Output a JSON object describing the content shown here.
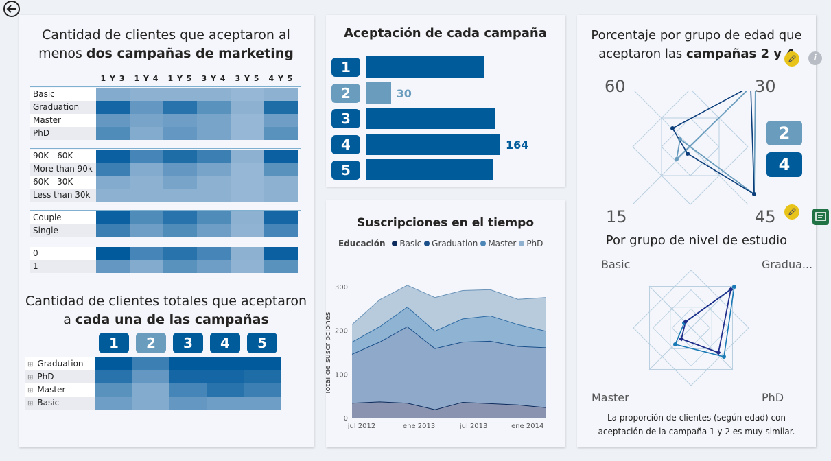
{
  "back_icon": "circle-arrow-left-icon",
  "card1": {
    "title_line1": "Cantidad de clientes que aceptaron al",
    "title_pre": "menos ",
    "title_bold": "dos campañas de marketing",
    "columns": [
      "1 Y 3",
      "1 Y 4",
      "1 Y 5",
      "3 Y 4",
      "3 Y 5",
      "4 Y 5"
    ],
    "groups": [
      {
        "rows": [
          {
            "label": "Basic",
            "shades": [
              0.35,
              0.3,
              0.3,
              0.3,
              0.25,
              0.3
            ]
          },
          {
            "label": "Graduation",
            "shades": [
              0.9,
              0.5,
              0.8,
              0.55,
              0.3,
              0.85
            ]
          },
          {
            "label": "Master",
            "shades": [
              0.5,
              0.4,
              0.45,
              0.4,
              0.25,
              0.45
            ]
          },
          {
            "label": "PhD",
            "shades": [
              0.6,
              0.35,
              0.5,
              0.4,
              0.25,
              0.55
            ]
          }
        ]
      },
      {
        "rows": [
          {
            "label": "90K - 60K",
            "shades": [
              0.95,
              0.65,
              0.85,
              0.7,
              0.3,
              0.95
            ]
          },
          {
            "label": "More than 90k",
            "shades": [
              0.7,
              0.35,
              0.5,
              0.4,
              0.25,
              0.55
            ]
          },
          {
            "label": "60K - 30K",
            "shades": [
              0.35,
              0.3,
              0.4,
              0.3,
              0.25,
              0.3
            ]
          },
          {
            "label": "Less than 30k",
            "shades": [
              0.3,
              0.3,
              0.3,
              0.3,
              0.25,
              0.3
            ]
          }
        ]
      },
      {
        "rows": [
          {
            "label": "Couple",
            "shades": [
              0.95,
              0.6,
              0.8,
              0.6,
              0.3,
              0.9
            ]
          },
          {
            "label": "Single",
            "shades": [
              0.7,
              0.45,
              0.6,
              0.45,
              0.28,
              0.65
            ]
          }
        ]
      },
      {
        "rows": [
          {
            "label": "0",
            "shades": [
              1.0,
              0.65,
              0.8,
              0.65,
              0.3,
              0.95
            ]
          },
          {
            "label": "1",
            "shades": [
              0.5,
              0.35,
              0.55,
              0.45,
              0.28,
              0.55
            ]
          }
        ]
      }
    ]
  },
  "card2": {
    "title_line1": "Cantidad de clientes totales que aceptaron",
    "title_pre": "a ",
    "title_bold": "cada una de las campañas",
    "campaigns": [
      "1",
      "2",
      "3",
      "4",
      "5"
    ],
    "rows": [
      {
        "label": "Graduation",
        "shades": [
          1.0,
          0.7,
          1.0,
          1.0,
          1.0
        ]
      },
      {
        "label": "PhD",
        "shades": [
          0.8,
          0.5,
          0.9,
          0.9,
          0.85
        ]
      },
      {
        "label": "Master",
        "shades": [
          0.55,
          0.35,
          0.65,
          0.8,
          0.7
        ]
      },
      {
        "label": "Basic",
        "shades": [
          0.45,
          0.35,
          0.5,
          0.45,
          0.45
        ]
      }
    ]
  },
  "card3": {
    "title": "Aceptación de cada campaña",
    "bars": [
      {
        "label": "1",
        "value": 144
      },
      {
        "label": "2",
        "value": 30,
        "value_label": "30"
      },
      {
        "label": "3",
        "value": 157
      },
      {
        "label": "4",
        "value": 164,
        "value_label": "164"
      },
      {
        "label": "5",
        "value": 155
      }
    ]
  },
  "card4": {
    "title": "Suscripciones en el tiempo",
    "legend_title": "Educación",
    "legend": [
      {
        "name": "Basic",
        "color": "#0d2b5c"
      },
      {
        "name": "Graduation",
        "color": "#1a4f8a"
      },
      {
        "name": "Master",
        "color": "#4d87b8"
      },
      {
        "name": "PhD",
        "color": "#8fb1cf"
      }
    ],
    "ylabel": "Total de suscripciones",
    "xticks": [
      "jul 2012",
      "ene 2013",
      "jul 2013",
      "ene 2014"
    ],
    "yticks": [
      "0",
      "100",
      "200",
      "300"
    ]
  },
  "chart_data": {
    "type": "area",
    "title": "Suscripciones en el tiempo",
    "ylabel": "Total de suscripciones",
    "xlabel": "",
    "ylim": [
      0,
      330
    ],
    "x": [
      "2012-07",
      "2012-10",
      "2013-01",
      "2013-04",
      "2013-07",
      "2013-10",
      "2014-01",
      "2014-04"
    ],
    "series": [
      {
        "name": "Basic",
        "values": [
          35,
          38,
          35,
          20,
          37,
          34,
          31,
          25
        ]
      },
      {
        "name": "Graduation",
        "values": [
          147,
          175,
          210,
          160,
          175,
          177,
          165,
          162
        ]
      },
      {
        "name": "Master",
        "values": [
          175,
          210,
          255,
          200,
          228,
          235,
          215,
          200
        ]
      },
      {
        "name": "PhD",
        "values": [
          215,
          272,
          305,
          277,
          293,
          295,
          273,
          277
        ]
      }
    ]
  },
  "card5": {
    "title_line1": "Porcentaje por grupo de edad que",
    "title_pre": "aceptaron las ",
    "title_bold": "campañas 2 y 4",
    "axes": [
      "60",
      "30",
      "45",
      "15"
    ],
    "badges": [
      "2",
      "4"
    ],
    "subtitle": "Por grupo de nivel de estudio",
    "axes2": [
      "Basic",
      "Gradua...",
      "PhD",
      "Master"
    ],
    "note": "La proporción de clientes (según edad) con aceptación de la campaña 1 y 2 es muy similar."
  },
  "colors": {
    "dark": "#005b9a",
    "mid": "#6a9cbd",
    "accent": "#e8c41a"
  }
}
